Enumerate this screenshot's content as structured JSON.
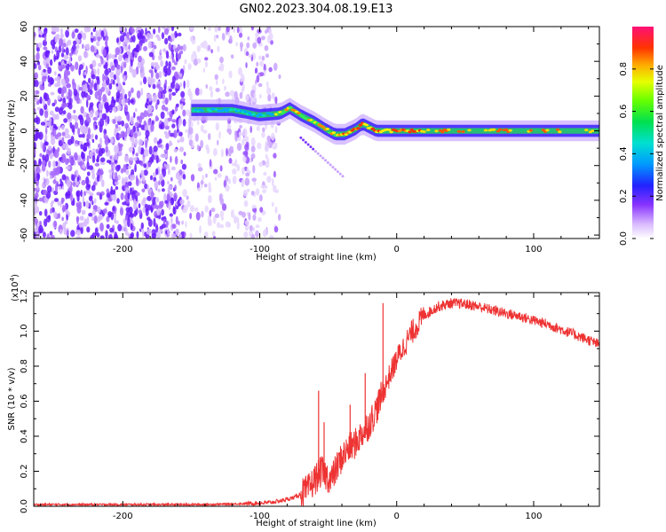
{
  "title": "GN02.2023.304.08.19.E13",
  "chart_data": [
    {
      "type": "heatmap",
      "name": "spectrogram",
      "xlabel": "Height of straight line (km)",
      "ylabel": "Frequency (Hz)",
      "xlim": [
        -265,
        148
      ],
      "ylim": [
        -62,
        60
      ],
      "x_ticks": [
        -200,
        -100,
        0,
        100
      ],
      "y_ticks": [
        -60,
        -40,
        -20,
        0,
        20,
        40,
        60
      ],
      "colorbar": {
        "label": "Normalized spectral amplitude",
        "range": [
          0,
          1
        ],
        "ticks": [
          0.0,
          0.2,
          0.4,
          0.6,
          0.8
        ]
      },
      "features": {
        "noise_region_x": [
          -265,
          -85
        ],
        "dense_noise_x": [
          -265,
          -155
        ],
        "signal_band": {
          "x": [
            -150,
            -120,
            -100,
            -85,
            -78,
            -70,
            -60,
            -52,
            -45,
            -38,
            -30,
            -25,
            -20,
            -15,
            -10,
            0,
            50,
            100,
            148
          ],
          "freq": [
            12,
            12,
            9,
            10,
            13,
            9,
            5,
            1,
            -2,
            -2,
            1,
            4,
            2,
            0,
            0,
            0,
            0,
            0,
            0
          ]
        }
      }
    },
    {
      "type": "line",
      "name": "snr",
      "xlabel": "Height of straight line (km)",
      "ylabel": "SNR (10 * v/v)",
      "y_scale_label": "(x10",
      "y_scale_exp": "4",
      "xlim": [
        -265,
        148
      ],
      "ylim": [
        0,
        1.22
      ],
      "x_ticks": [
        -200,
        -100,
        0,
        100
      ],
      "y_ticks": [
        0.0,
        0.2,
        0.4,
        0.6,
        0.8,
        1.0,
        1.2
      ],
      "color": "#ee3333",
      "x": [
        -265,
        -200,
        -140,
        -110,
        -95,
        -85,
        -75,
        -65,
        -60,
        -55,
        -52,
        -48,
        -45,
        -40,
        -35,
        -30,
        -25,
        -20,
        -15,
        -10,
        -5,
        0,
        10,
        20,
        30,
        40,
        50,
        60,
        70,
        80,
        90,
        100,
        110,
        120,
        130,
        140,
        148
      ],
      "y": [
        0.01,
        0.01,
        0.01,
        0.015,
        0.02,
        0.03,
        0.05,
        0.09,
        0.15,
        0.2,
        0.18,
        0.15,
        0.2,
        0.28,
        0.33,
        0.36,
        0.42,
        0.47,
        0.55,
        0.65,
        0.75,
        0.84,
        0.98,
        1.09,
        1.14,
        1.16,
        1.155,
        1.14,
        1.12,
        1.1,
        1.085,
        1.06,
        1.04,
        1.01,
        0.98,
        0.95,
        0.92
      ],
      "spikes": [
        {
          "x": -57,
          "y": 0.66
        },
        {
          "x": -53,
          "y": 0.48
        },
        {
          "x": -34,
          "y": 0.58
        },
        {
          "x": -23,
          "y": 0.76
        },
        {
          "x": -10,
          "y": 1.16
        }
      ]
    }
  ]
}
